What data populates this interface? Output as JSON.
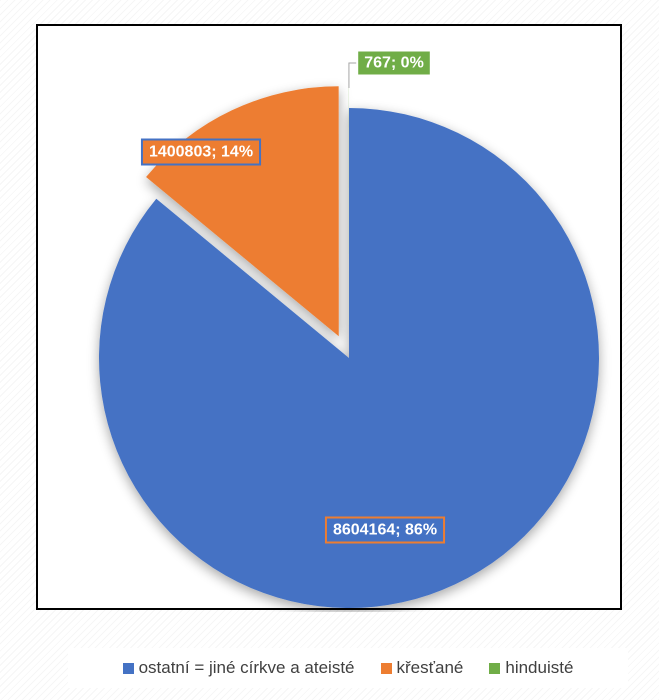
{
  "chart_data": {
    "type": "pie",
    "title": "",
    "slices": [
      {
        "name": "ostatní = jiné církve a ateisté",
        "value": 8604164,
        "percent": 86,
        "color": "#4472C4",
        "label": "8604164; 86%"
      },
      {
        "name": "křesťané",
        "value": 1400803,
        "percent": 14,
        "color": "#ED7D31",
        "label": "1400803; 14%"
      },
      {
        "name": "hinduisté",
        "value": 767,
        "percent": 0,
        "color": "#70AD47",
        "label": "767; 0%"
      }
    ],
    "exploded": true,
    "legend_position": "bottom"
  }
}
